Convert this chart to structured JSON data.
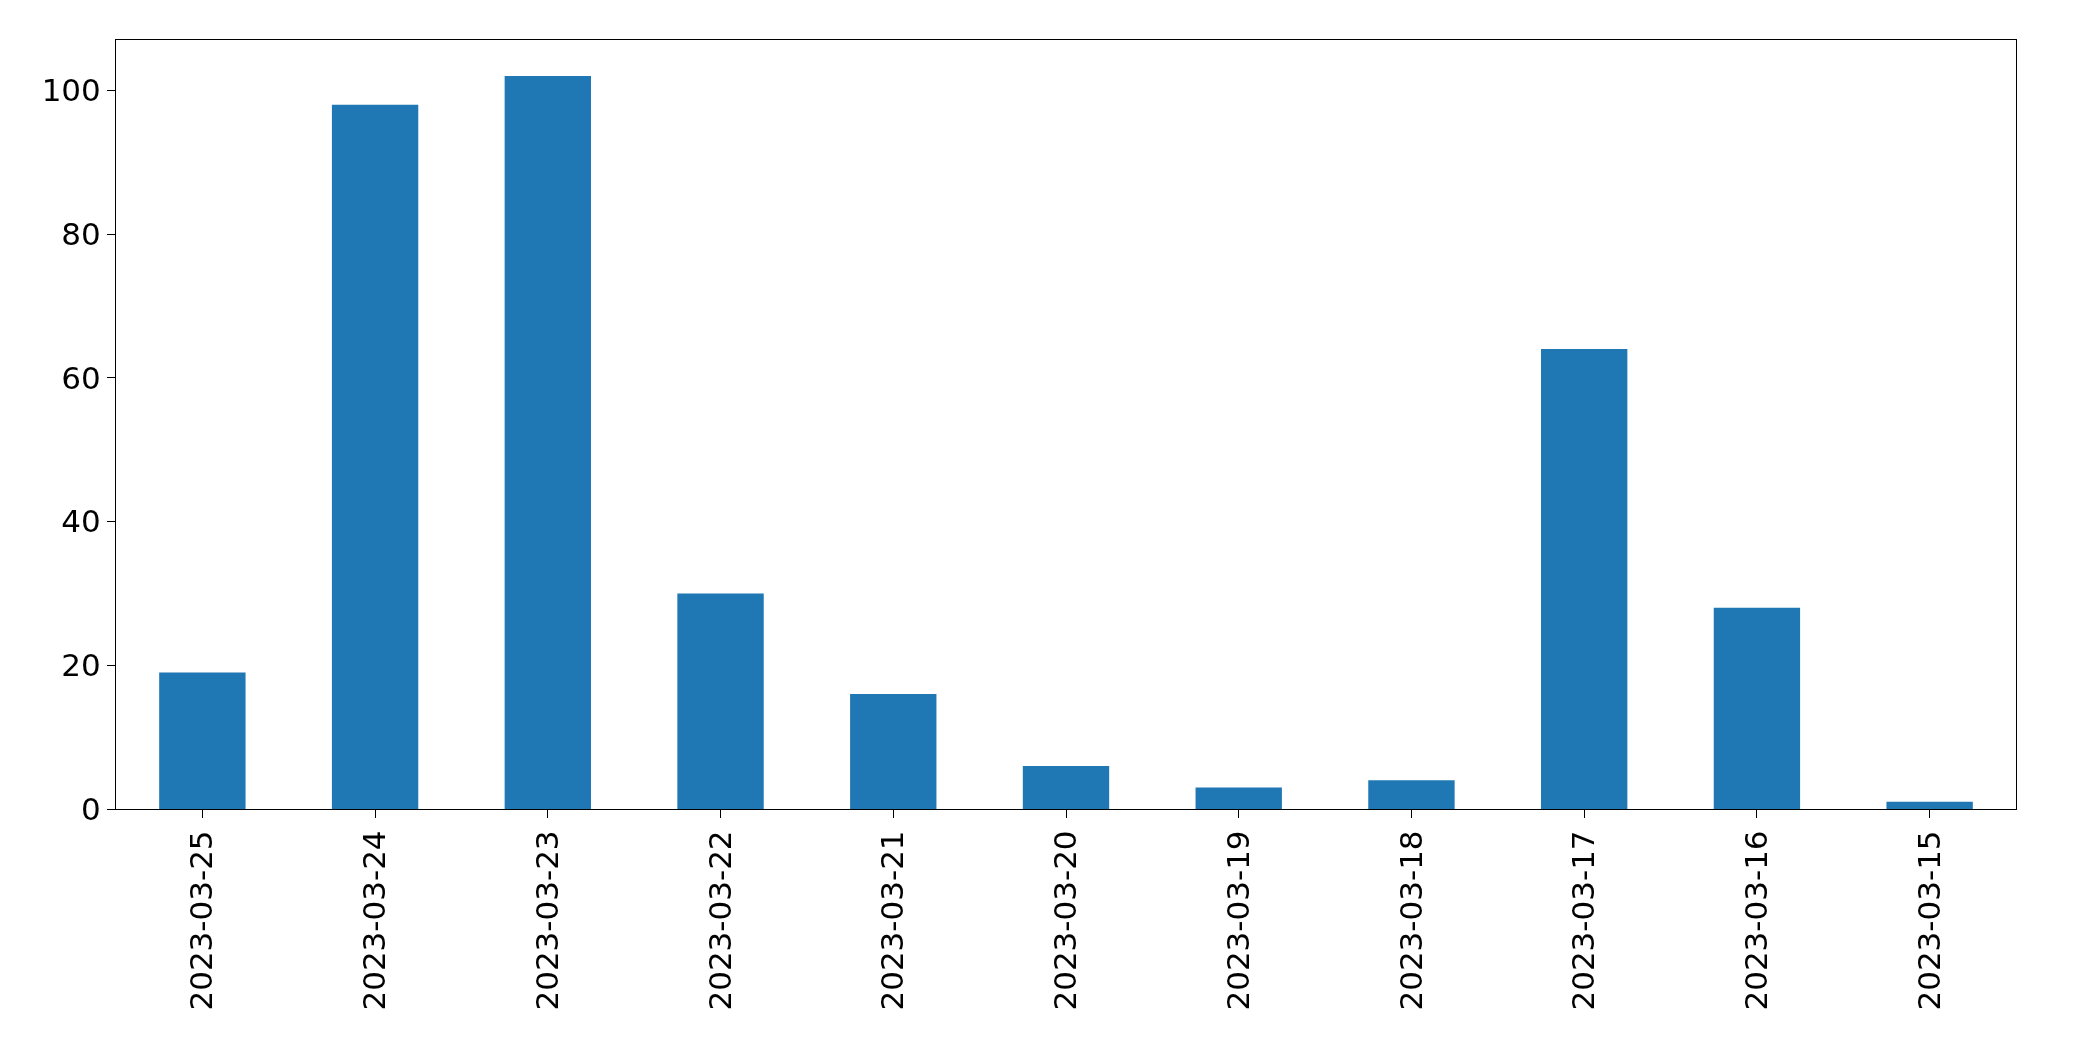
{
  "chart_data": {
    "type": "bar",
    "categories": [
      "2023-03-25",
      "2023-03-24",
      "2023-03-23",
      "2023-03-22",
      "2023-03-21",
      "2023-03-20",
      "2023-03-19",
      "2023-03-18",
      "2023-03-17",
      "2023-03-16",
      "2023-03-15"
    ],
    "values": [
      19,
      98,
      102,
      30,
      16,
      6,
      3,
      4,
      64,
      28,
      1
    ],
    "color": "#1f77b4",
    "ylim": [
      0,
      107
    ],
    "yticks": [
      0,
      20,
      40,
      60,
      80,
      100
    ],
    "grid": false,
    "legend": false
  }
}
